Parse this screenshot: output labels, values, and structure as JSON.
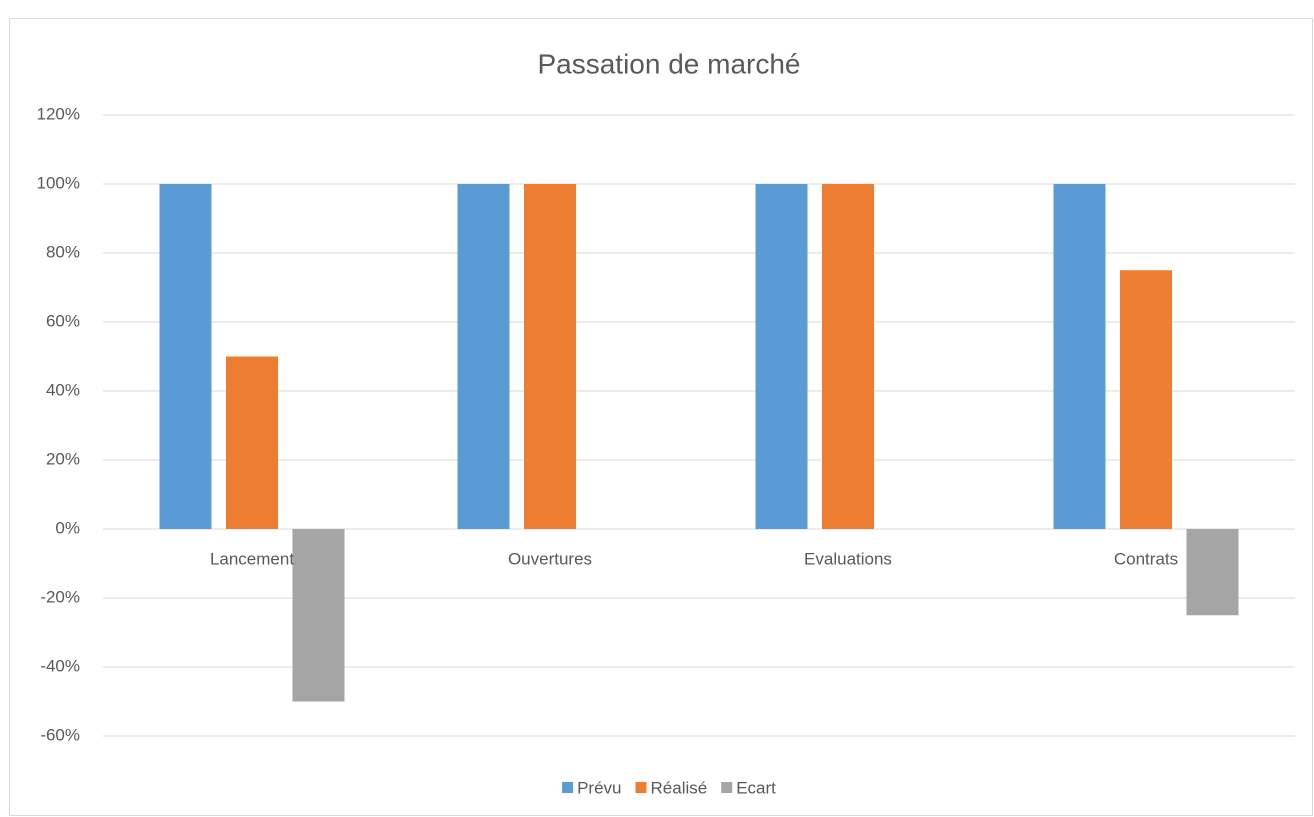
{
  "chart_data": {
    "type": "bar",
    "title": "Passation de marché",
    "categories": [
      "Lancement",
      "Ouvertures",
      "Evaluations",
      "Contrats"
    ],
    "series": [
      {
        "name": "Prévu",
        "color": "#5b9bd5",
        "values": [
          100,
          100,
          100,
          100
        ]
      },
      {
        "name": "Réalisé",
        "color": "#ed7d31",
        "values": [
          50,
          100,
          100,
          75
        ]
      },
      {
        "name": "Ecart",
        "color": "#a5a5a5",
        "values": [
          -50,
          0,
          0,
          -25
        ]
      }
    ],
    "ylim": [
      -60,
      120
    ],
    "yticks": [
      {
        "value": -60,
        "label": "-60%"
      },
      {
        "value": -40,
        "label": "-40%"
      },
      {
        "value": -20,
        "label": "-20%"
      },
      {
        "value": 0,
        "label": "0%"
      },
      {
        "value": 20,
        "label": "20%"
      },
      {
        "value": 40,
        "label": "40%"
      },
      {
        "value": 60,
        "label": "60%"
      },
      {
        "value": 80,
        "label": "80%"
      },
      {
        "value": 100,
        "label": "100%"
      },
      {
        "value": 120,
        "label": "120%"
      }
    ],
    "grid": true,
    "legend": "bottom"
  }
}
